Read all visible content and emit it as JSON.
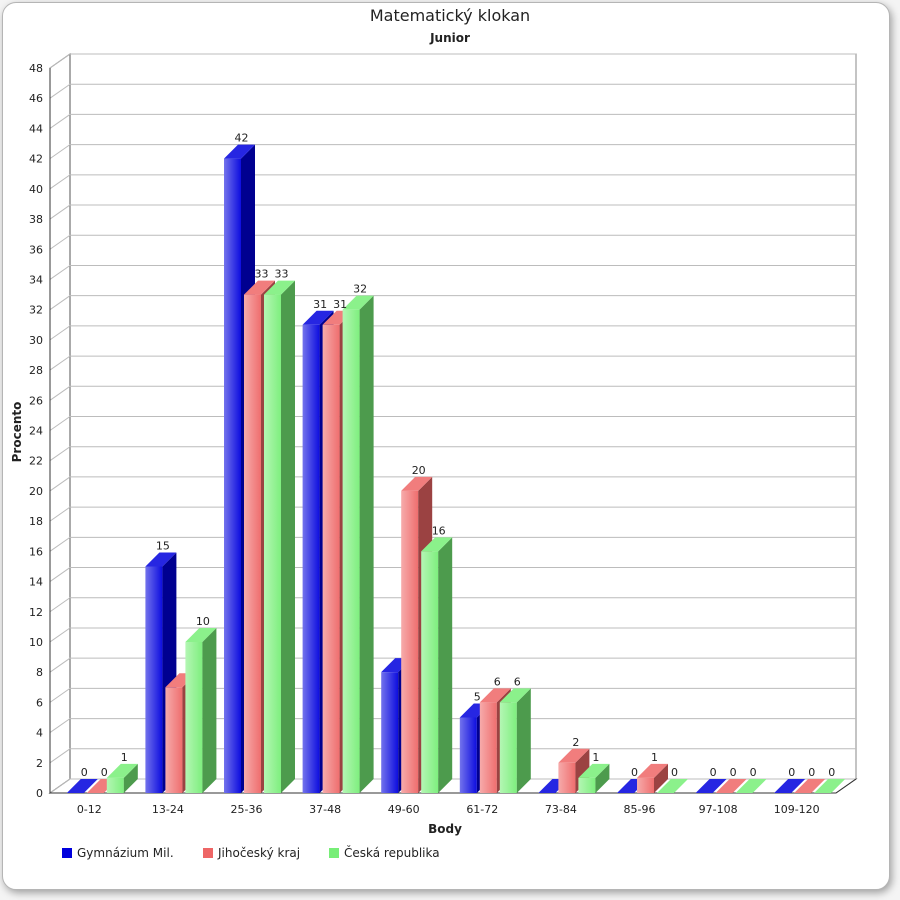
{
  "chart_data": {
    "type": "bar",
    "title": "Matematický klokan",
    "subtitle": "Junior",
    "xlabel": "Body",
    "ylabel": "Procento",
    "ylim": [
      0,
      48
    ],
    "ytick_step": 2,
    "grid": true,
    "legend_position": "bottom-left",
    "categories": [
      "0-12",
      "13-24",
      "25-36",
      "37-48",
      "49-60",
      "61-72",
      "73-84",
      "85-96",
      "97-108",
      "109-120"
    ],
    "series": [
      {
        "name": "Gymnázium Mil.",
        "color": "#0000dd",
        "values": [
          0,
          15,
          42,
          31,
          8,
          5,
          0,
          0,
          0,
          0
        ],
        "labels": [
          "0",
          "15",
          "42",
          "31",
          "",
          "5",
          "",
          "0",
          "0",
          "0"
        ]
      },
      {
        "name": "Jihočeský kraj",
        "color": "#ee6666",
        "values": [
          0,
          7,
          33,
          31,
          20,
          6,
          2,
          1,
          0,
          0
        ],
        "labels": [
          "0",
          "",
          "33",
          "31",
          "20",
          "6",
          "2",
          "1",
          "0",
          "0"
        ]
      },
      {
        "name": "Česká republika",
        "color": "#77ee77",
        "values": [
          1,
          10,
          33,
          32,
          16,
          6,
          1,
          0,
          0,
          0
        ],
        "labels": [
          "1",
          "10",
          "33",
          "32",
          "16",
          "6",
          "1",
          "0",
          "0",
          "0"
        ]
      }
    ]
  }
}
